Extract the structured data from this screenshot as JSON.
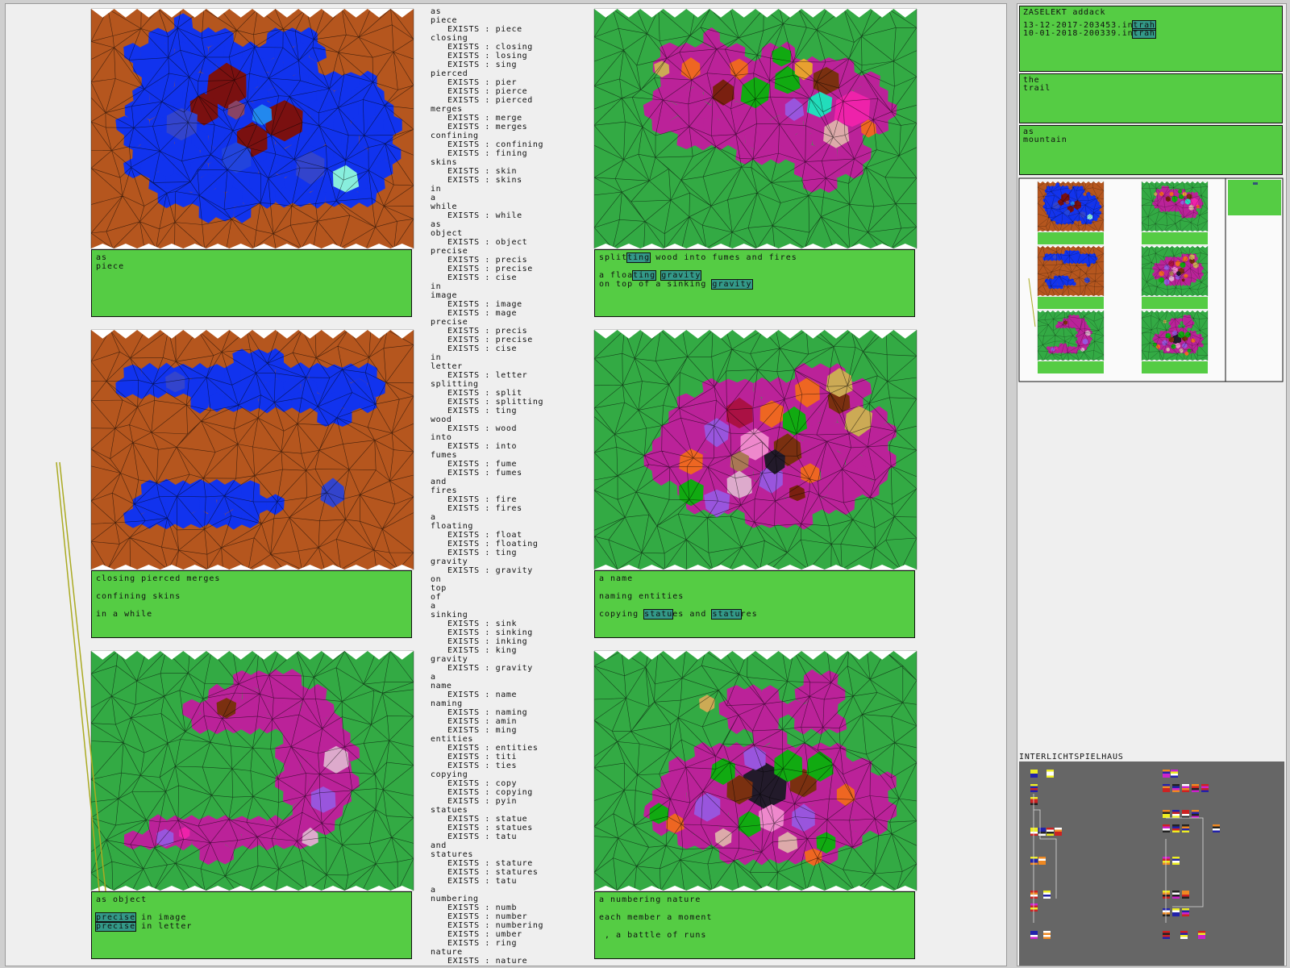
{
  "captions": [
    {
      "lines": [
        [
          {
            "text": "as"
          }
        ],
        [
          {
            "text": "piece"
          }
        ]
      ]
    },
    {
      "lines": [
        [
          {
            "text": "split"
          },
          {
            "text": "ting",
            "highlight": true
          },
          {
            "text": " wood into fumes and fires"
          }
        ],
        [
          {
            "text": "a floa"
          },
          {
            "text": "ting",
            "highlight": true
          },
          {
            "text": " "
          },
          {
            "text": "gravity",
            "highlight": true
          }
        ],
        [
          {
            "text": "on top of a sinking "
          },
          {
            "text": "gravity",
            "highlight": true
          }
        ]
      ]
    },
    {
      "lines": [
        [
          {
            "text": "closing pierced merges"
          }
        ],
        [
          {
            "text": "confining skins"
          }
        ],
        [
          {
            "text": "in a while"
          }
        ]
      ]
    },
    {
      "lines": [
        [
          {
            "text": "a name"
          }
        ],
        [
          {
            "text": "naming entities"
          }
        ],
        [
          {
            "text": "copying "
          },
          {
            "text": "statu",
            "highlight": true
          },
          {
            "text": "es and "
          },
          {
            "text": "statu",
            "highlight": true
          },
          {
            "text": "res"
          }
        ]
      ]
    },
    {
      "lines": [
        [
          {
            "text": "as object"
          }
        ],
        [
          {
            "text": "precise",
            "highlight": true
          },
          {
            "text": " in image"
          }
        ],
        [
          {
            "text": "precise",
            "highlight": true
          },
          {
            "text": " in letter"
          }
        ]
      ]
    },
    {
      "lines": [
        [
          {
            "text": "a numbering nature"
          }
        ],
        [
          {
            "text": "each member a moment"
          }
        ],
        [
          {
            "text": " , a battle of runs"
          }
        ]
      ]
    }
  ],
  "word_list": [
    {
      "word": "as"
    },
    {
      "word": "piece",
      "exists": [
        "EXISTS : piece"
      ]
    },
    {
      "word": "closing",
      "exists": [
        "EXISTS : closing",
        "EXISTS : losing",
        "EXISTS : sing"
      ]
    },
    {
      "word": "pierced",
      "exists": [
        "EXISTS : pier",
        "EXISTS : pierce",
        "EXISTS : pierced"
      ]
    },
    {
      "word": "merges",
      "exists": [
        "EXISTS : merge",
        "EXISTS : merges"
      ]
    },
    {
      "word": "confining",
      "exists": [
        "EXISTS : confining",
        "EXISTS : fining"
      ]
    },
    {
      "word": "skins",
      "exists": [
        "EXISTS : skin",
        "EXISTS : skins"
      ]
    },
    {
      "word": "in"
    },
    {
      "word": "a"
    },
    {
      "word": "while",
      "exists": [
        "EXISTS : while"
      ]
    },
    {
      "word": "as"
    },
    {
      "word": "object",
      "exists": [
        "EXISTS : object"
      ]
    },
    {
      "word": "precise",
      "exists": [
        "EXISTS : precis",
        "EXISTS : precise",
        "EXISTS : cise"
      ]
    },
    {
      "word": "in"
    },
    {
      "word": "image",
      "exists": [
        "EXISTS : image",
        "EXISTS : mage"
      ]
    },
    {
      "word": "precise",
      "exists": [
        "EXISTS : precis",
        "EXISTS : precise",
        "EXISTS : cise"
      ]
    },
    {
      "word": "in"
    },
    {
      "word": "letter",
      "exists": [
        "EXISTS : letter"
      ]
    },
    {
      "word": "splitting",
      "exists": [
        "EXISTS : split",
        "EXISTS : splitting",
        "EXISTS : ting"
      ]
    },
    {
      "word": "wood",
      "exists": [
        "EXISTS : wood"
      ]
    },
    {
      "word": "into",
      "exists": [
        "EXISTS : into"
      ]
    },
    {
      "word": "fumes",
      "exists": [
        "EXISTS : fume",
        "EXISTS : fumes"
      ]
    },
    {
      "word": "and"
    },
    {
      "word": "fires",
      "exists": [
        "EXISTS : fire",
        "EXISTS : fires"
      ]
    },
    {
      "word": "a"
    },
    {
      "word": "floating",
      "exists": [
        "EXISTS : float",
        "EXISTS : floating",
        "EXISTS : ting"
      ]
    },
    {
      "word": "gravity",
      "exists": [
        "EXISTS : gravity"
      ]
    },
    {
      "word": "on"
    },
    {
      "word": "top"
    },
    {
      "word": "of"
    },
    {
      "word": "a"
    },
    {
      "word": "sinking",
      "exists": [
        "EXISTS : sink",
        "EXISTS : sinking",
        "EXISTS : inking",
        "EXISTS : king"
      ]
    },
    {
      "word": "gravity",
      "exists": [
        "EXISTS : gravity"
      ]
    },
    {
      "word": "a"
    },
    {
      "word": "name",
      "exists": [
        "EXISTS : name"
      ]
    },
    {
      "word": "naming",
      "exists": [
        "EXISTS : naming",
        "EXISTS : amin",
        "EXISTS : ming"
      ]
    },
    {
      "word": "entities",
      "exists": [
        "EXISTS : entities",
        "EXISTS : titi",
        "EXISTS : ties"
      ]
    },
    {
      "word": "copying",
      "exists": [
        "EXISTS : copy",
        "EXISTS : copying",
        "EXISTS : pyin"
      ]
    },
    {
      "word": "statues",
      "exists": [
        "EXISTS : statue",
        "EXISTS : statues",
        "EXISTS : tatu"
      ]
    },
    {
      "word": "and"
    },
    {
      "word": "statures",
      "exists": [
        "EXISTS : stature",
        "EXISTS : statures",
        "EXISTS : tatu"
      ]
    },
    {
      "word": "a"
    },
    {
      "word": "numbering",
      "exists": [
        "EXISTS : numb",
        "EXISTS : number",
        "EXISTS : numbering",
        "EXISTS : umber",
        "EXISTS : ring"
      ]
    },
    {
      "word": "nature",
      "exists": [
        "EXISTS : nature"
      ]
    }
  ],
  "sidebar": {
    "title": "ZASELEKT addack",
    "files": [
      [
        {
          "text": "13-12-2017-203453.in"
        },
        {
          "text": "trah",
          "highlight": true
        }
      ],
      [
        {
          "text": "10-01-2018-200339.in"
        },
        {
          "text": "trah",
          "highlight": true
        }
      ]
    ],
    "boxes": [
      [
        "the",
        "trail"
      ],
      [
        "as",
        "mountain"
      ]
    ],
    "section_label": "INTERLICHTSPIELHAUS"
  }
}
